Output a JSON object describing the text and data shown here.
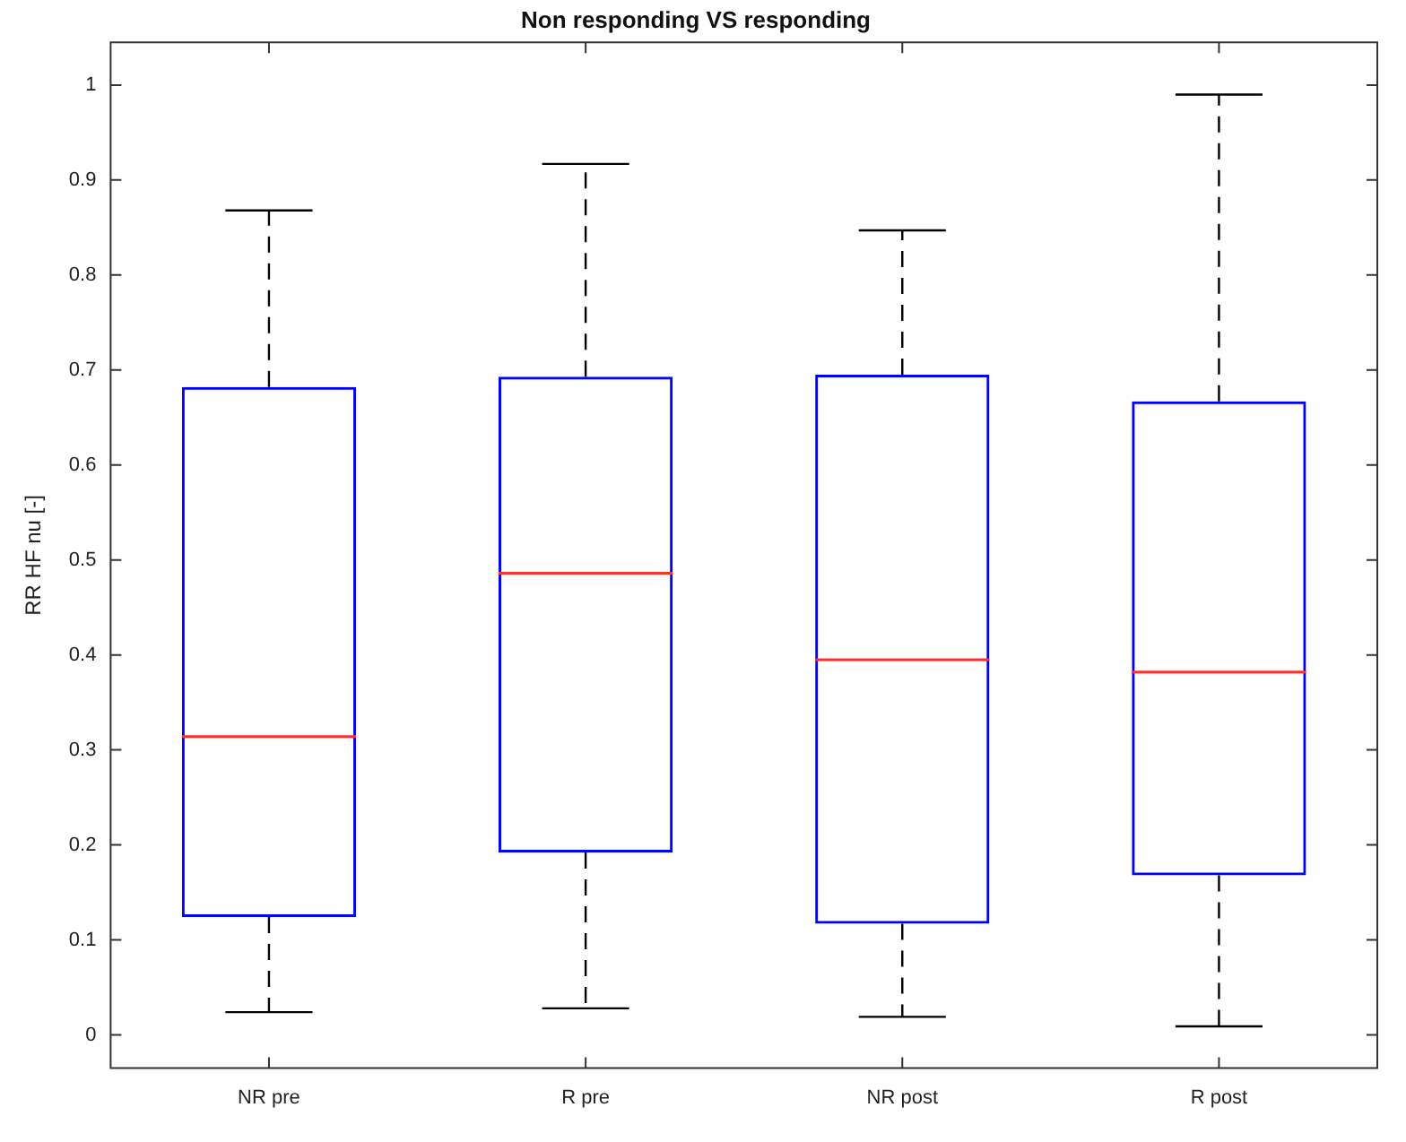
{
  "chart_data": {
    "type": "box",
    "title": "Non responding VS responding",
    "ylabel": "RR HF nu [-]",
    "categories": [
      "NR pre",
      "R pre",
      "NR post",
      "R post"
    ],
    "color": "#0000ff",
    "boxes": [
      {
        "low": 0.024,
        "q1": 0.124,
        "median": 0.314,
        "q3": 0.682,
        "high": 0.868
      },
      {
        "low": 0.028,
        "q1": 0.192,
        "median": 0.486,
        "q3": 0.693,
        "high": 0.917
      },
      {
        "low": 0.019,
        "q1": 0.117,
        "median": 0.395,
        "q3": 0.695,
        "high": 0.847
      },
      {
        "low": 0.009,
        "q1": 0.168,
        "median": 0.382,
        "q3": 0.667,
        "high": 0.99
      }
    ],
    "ylim": [
      -0.035,
      1.045
    ],
    "yticks": [
      0,
      0.1,
      0.2,
      0.3,
      0.4,
      0.5,
      0.6,
      0.7,
      0.8,
      0.9,
      1
    ],
    "grid": false,
    "legend": false
  }
}
